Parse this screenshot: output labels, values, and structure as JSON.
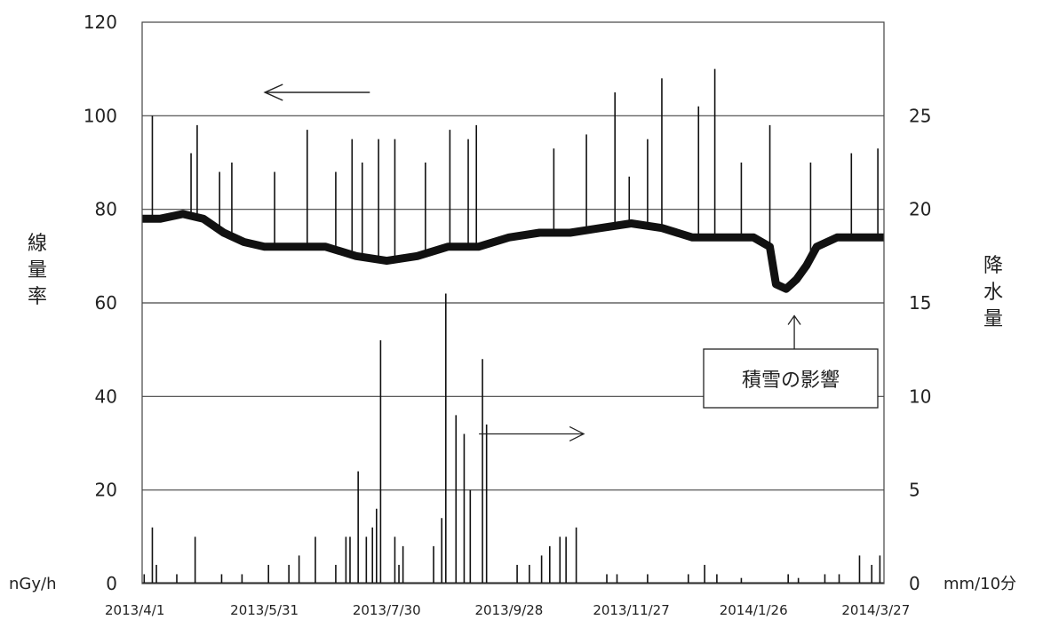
{
  "chart_data": {
    "type": "line",
    "title": "",
    "y_left": {
      "label": "線量率",
      "unit": "nGy/h",
      "range": [
        0,
        120
      ],
      "ticks": [
        0,
        20,
        40,
        60,
        80,
        100,
        120
      ]
    },
    "y_right": {
      "label": "降水量",
      "unit": "mm/10分",
      "range": [
        0,
        30
      ],
      "ticks": [
        0,
        5,
        10,
        15,
        20,
        25
      ]
    },
    "x_axis": {
      "range": [
        "2013-04-01",
        "2014-03-31"
      ],
      "tick_labels": [
        "2013/4/1",
        "2013/5/31",
        "2013/7/30",
        "2013/9/28",
        "2013/11/27",
        "2014/1/26",
        "2014/3/27"
      ]
    },
    "grid": {
      "horizontal": true,
      "vertical": false
    },
    "annotation": {
      "text": "積雪の影響",
      "date": "2014-02-15",
      "value": 58
    },
    "arrows": [
      {
        "points_to": "left_axis",
        "date": "2013-06-26",
        "value": 105
      },
      {
        "points_to": "right_axis",
        "date": "2013-10-09",
        "value": 8
      }
    ],
    "series": [
      {
        "name": "線量率",
        "axis": "left",
        "style": "line",
        "baseline": [
          [
            "2013-04-01",
            78
          ],
          [
            "2013-04-10",
            78
          ],
          [
            "2013-04-21",
            79
          ],
          [
            "2013-05-01",
            78
          ],
          [
            "2013-05-11",
            75
          ],
          [
            "2013-05-21",
            73
          ],
          [
            "2013-05-31",
            72
          ],
          [
            "2013-06-15",
            72
          ],
          [
            "2013-06-30",
            72
          ],
          [
            "2013-07-15",
            70
          ],
          [
            "2013-07-30",
            69
          ],
          [
            "2013-08-14",
            70
          ],
          [
            "2013-08-29",
            72
          ],
          [
            "2013-09-13",
            72
          ],
          [
            "2013-09-28",
            74
          ],
          [
            "2013-10-13",
            75
          ],
          [
            "2013-10-28",
            75
          ],
          [
            "2013-11-12",
            76
          ],
          [
            "2013-11-27",
            77
          ],
          [
            "2013-12-12",
            76
          ],
          [
            "2013-12-27",
            74
          ],
          [
            "2014-01-11",
            74
          ],
          [
            "2014-01-26",
            74
          ],
          [
            "2014-02-03",
            72
          ],
          [
            "2014-02-06",
            64
          ],
          [
            "2014-02-11",
            63
          ],
          [
            "2014-02-16",
            65
          ],
          [
            "2014-02-21",
            68
          ],
          [
            "2014-02-26",
            72
          ],
          [
            "2014-03-08",
            74
          ],
          [
            "2014-03-18",
            74
          ],
          [
            "2014-03-31",
            74
          ]
        ],
        "spikes": [
          [
            "2013-04-06",
            100
          ],
          [
            "2013-04-25",
            92
          ],
          [
            "2013-04-28",
            98
          ],
          [
            "2013-05-09",
            88
          ],
          [
            "2013-05-15",
            90
          ],
          [
            "2013-06-05",
            88
          ],
          [
            "2013-06-21",
            97
          ],
          [
            "2013-07-05",
            88
          ],
          [
            "2013-07-13",
            95
          ],
          [
            "2013-07-18",
            90
          ],
          [
            "2013-07-26",
            95
          ],
          [
            "2013-08-03",
            95
          ],
          [
            "2013-08-18",
            90
          ],
          [
            "2013-08-30",
            97
          ],
          [
            "2013-09-08",
            95
          ],
          [
            "2013-09-12",
            98
          ],
          [
            "2013-10-20",
            93
          ],
          [
            "2013-11-05",
            96
          ],
          [
            "2013-11-19",
            105
          ],
          [
            "2013-11-26",
            87
          ],
          [
            "2013-12-05",
            95
          ],
          [
            "2013-12-12",
            108
          ],
          [
            "2013-12-30",
            102
          ],
          [
            "2014-01-07",
            110
          ],
          [
            "2014-01-20",
            90
          ],
          [
            "2014-02-03",
            98
          ],
          [
            "2014-02-23",
            90
          ],
          [
            "2014-03-15",
            92
          ],
          [
            "2014-03-28",
            93
          ]
        ]
      },
      {
        "name": "降水量",
        "axis": "right",
        "style": "bar",
        "values": [
          [
            "2013-04-02",
            0.5
          ],
          [
            "2013-04-06",
            3.0
          ],
          [
            "2013-04-08",
            1.0
          ],
          [
            "2013-04-18",
            0.5
          ],
          [
            "2013-04-27",
            2.5
          ],
          [
            "2013-05-10",
            0.5
          ],
          [
            "2013-05-20",
            0.5
          ],
          [
            "2013-06-02",
            1.0
          ],
          [
            "2013-06-12",
            1.0
          ],
          [
            "2013-06-17",
            1.5
          ],
          [
            "2013-06-25",
            2.5
          ],
          [
            "2013-07-05",
            1.0
          ],
          [
            "2013-07-10",
            2.5
          ],
          [
            "2013-07-12",
            2.5
          ],
          [
            "2013-07-16",
            6.0
          ],
          [
            "2013-07-20",
            2.5
          ],
          [
            "2013-07-23",
            3.0
          ],
          [
            "2013-07-25",
            4.0
          ],
          [
            "2013-07-27",
            13.0
          ],
          [
            "2013-08-03",
            2.5
          ],
          [
            "2013-08-05",
            1.0
          ],
          [
            "2013-08-07",
            2.0
          ],
          [
            "2013-08-22",
            2.0
          ],
          [
            "2013-08-26",
            3.5
          ],
          [
            "2013-08-28",
            15.5
          ],
          [
            "2013-09-02",
            9.0
          ],
          [
            "2013-09-06",
            8.0
          ],
          [
            "2013-09-09",
            5.0
          ],
          [
            "2013-09-15",
            12.0
          ],
          [
            "2013-09-17",
            8.5
          ],
          [
            "2013-10-02",
            1.0
          ],
          [
            "2013-10-08",
            1.0
          ],
          [
            "2013-10-14",
            1.5
          ],
          [
            "2013-10-18",
            2.0
          ],
          [
            "2013-10-23",
            2.5
          ],
          [
            "2013-10-26",
            2.5
          ],
          [
            "2013-10-31",
            3.0
          ],
          [
            "2013-11-15",
            0.5
          ],
          [
            "2013-11-20",
            0.5
          ],
          [
            "2013-12-05",
            0.5
          ],
          [
            "2013-12-25",
            0.5
          ],
          [
            "2014-01-02",
            1.0
          ],
          [
            "2014-01-08",
            0.5
          ],
          [
            "2014-01-20",
            0.3
          ],
          [
            "2014-02-12",
            0.5
          ],
          [
            "2014-02-17",
            0.3
          ],
          [
            "2014-03-02",
            0.5
          ],
          [
            "2014-03-09",
            0.5
          ],
          [
            "2014-03-19",
            1.5
          ],
          [
            "2014-03-25",
            1.0
          ],
          [
            "2014-03-29",
            1.5
          ]
        ]
      }
    ]
  }
}
